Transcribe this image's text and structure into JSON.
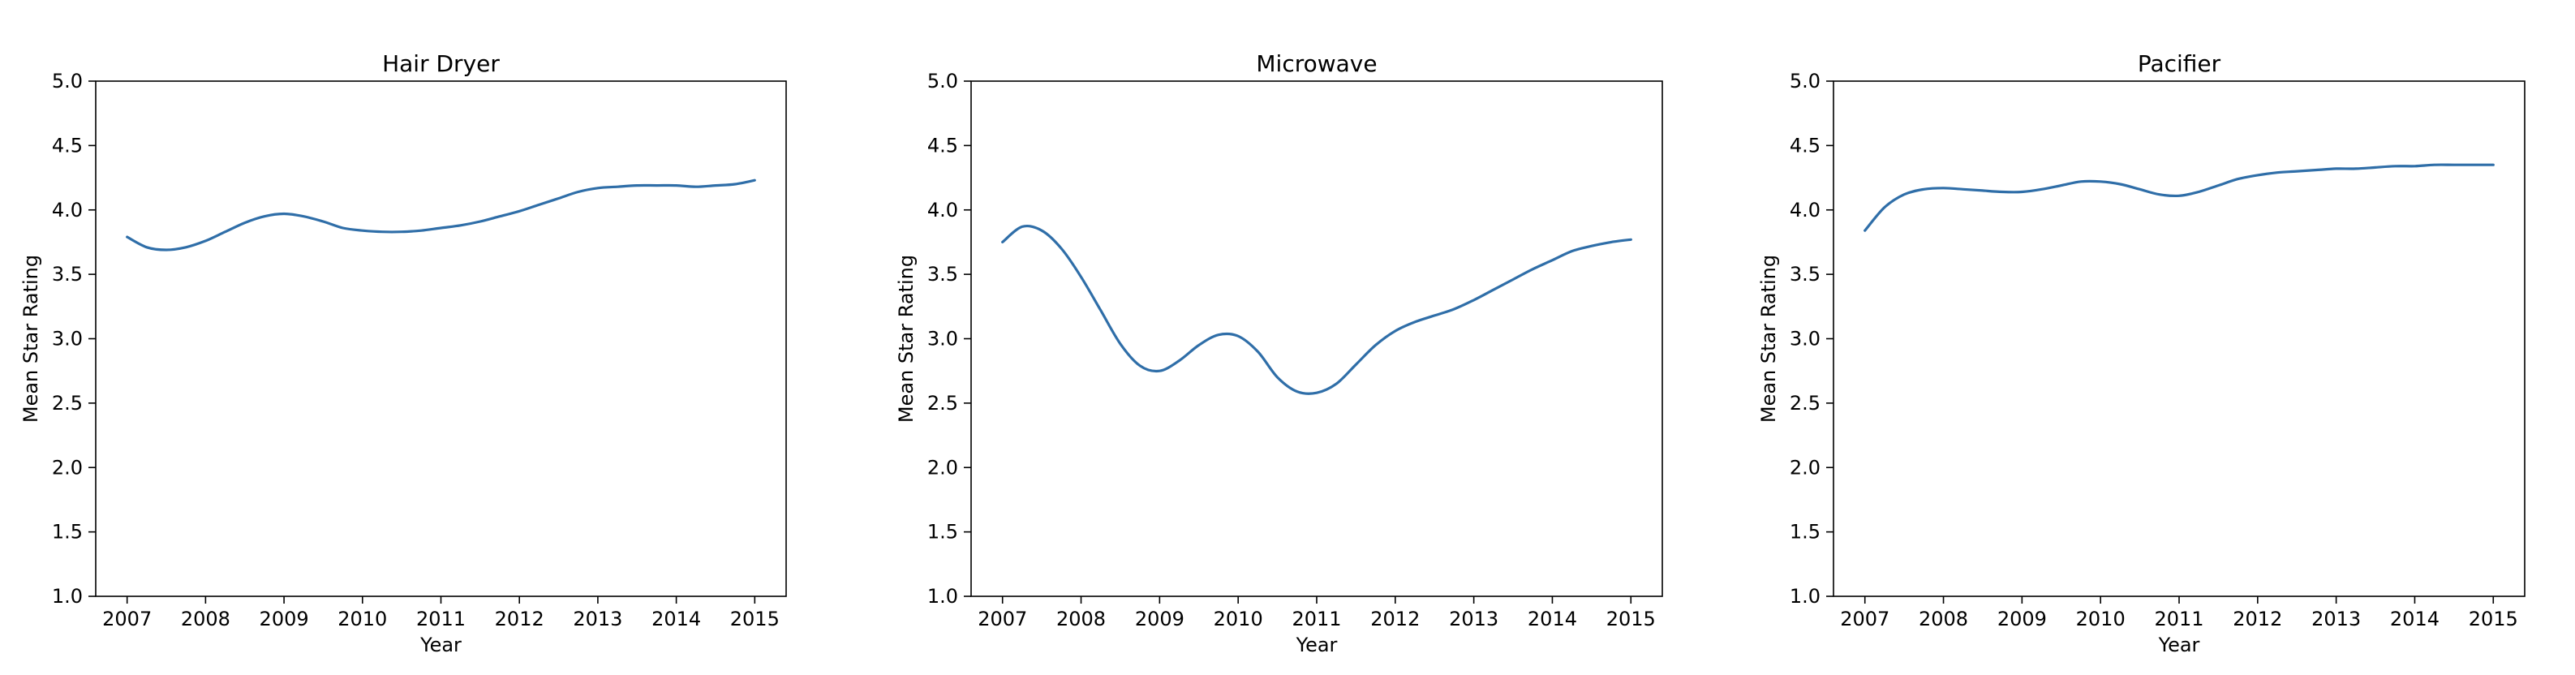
{
  "chart_data": [
    {
      "type": "line",
      "title": "Hair Dryer",
      "xlabel": "Year",
      "ylabel": "Mean Star Rating",
      "xlim": [
        2006.6,
        2015.4
      ],
      "ylim": [
        1.0,
        5.0
      ],
      "xticks": [
        "2007",
        "2008",
        "2009",
        "2010",
        "2011",
        "2012",
        "2013",
        "2014",
        "2015"
      ],
      "yticks": [
        "1.0",
        "1.5",
        "2.0",
        "2.5",
        "3.0",
        "3.5",
        "4.0",
        "4.5",
        "5.0"
      ],
      "grid": false,
      "line_color": "#2f6ea8",
      "x": [
        2007,
        2007.25,
        2007.5,
        2007.75,
        2008,
        2008.25,
        2008.5,
        2008.75,
        2009,
        2009.25,
        2009.5,
        2009.75,
        2010,
        2010.25,
        2010.5,
        2010.75,
        2011,
        2011.25,
        2011.5,
        2011.75,
        2012,
        2012.25,
        2012.5,
        2012.75,
        2013,
        2013.25,
        2013.5,
        2013.75,
        2014,
        2014.25,
        2014.5,
        2014.75,
        2015
      ],
      "values": [
        3.79,
        3.71,
        3.69,
        3.71,
        3.76,
        3.83,
        3.9,
        3.95,
        3.97,
        3.95,
        3.91,
        3.86,
        3.84,
        3.83,
        3.83,
        3.84,
        3.86,
        3.88,
        3.91,
        3.95,
        3.99,
        4.04,
        4.09,
        4.14,
        4.17,
        4.18,
        4.19,
        4.19,
        4.19,
        4.18,
        4.19,
        4.2,
        4.23
      ]
    },
    {
      "type": "line",
      "title": "Microwave",
      "xlabel": "Year",
      "ylabel": "Mean Star Rating",
      "xlim": [
        2006.6,
        2015.4
      ],
      "ylim": [
        1.0,
        5.0
      ],
      "xticks": [
        "2007",
        "2008",
        "2009",
        "2010",
        "2011",
        "2012",
        "2013",
        "2014",
        "2015"
      ],
      "yticks": [
        "1.0",
        "1.5",
        "2.0",
        "2.5",
        "3.0",
        "3.5",
        "4.0",
        "4.5",
        "5.0"
      ],
      "grid": false,
      "line_color": "#2f6ea8",
      "x": [
        2007,
        2007.25,
        2007.5,
        2007.75,
        2008,
        2008.25,
        2008.5,
        2008.75,
        2009,
        2009.25,
        2009.5,
        2009.75,
        2010,
        2010.25,
        2010.5,
        2010.75,
        2011,
        2011.25,
        2011.5,
        2011.75,
        2012,
        2012.25,
        2012.5,
        2012.75,
        2013,
        2013.25,
        2013.5,
        2013.75,
        2014,
        2014.25,
        2014.5,
        2014.75,
        2015
      ],
      "values": [
        3.75,
        3.87,
        3.84,
        3.7,
        3.48,
        3.22,
        2.96,
        2.79,
        2.75,
        2.83,
        2.95,
        3.03,
        3.02,
        2.9,
        2.7,
        2.59,
        2.58,
        2.65,
        2.8,
        2.95,
        3.06,
        3.13,
        3.18,
        3.23,
        3.3,
        3.38,
        3.46,
        3.54,
        3.61,
        3.68,
        3.72,
        3.75,
        3.77
      ]
    },
    {
      "type": "line",
      "title": "Pacifier",
      "xlabel": "Year",
      "ylabel": "Mean Star Rating",
      "xlim": [
        2006.6,
        2015.4
      ],
      "ylim": [
        1.0,
        5.0
      ],
      "xticks": [
        "2007",
        "2008",
        "2009",
        "2010",
        "2011",
        "2012",
        "2013",
        "2014",
        "2015"
      ],
      "yticks": [
        "1.0",
        "1.5",
        "2.0",
        "2.5",
        "3.0",
        "3.5",
        "4.0",
        "4.5",
        "5.0"
      ],
      "grid": false,
      "line_color": "#2f6ea8",
      "x": [
        2007,
        2007.25,
        2007.5,
        2007.75,
        2008,
        2008.25,
        2008.5,
        2008.75,
        2009,
        2009.25,
        2009.5,
        2009.75,
        2010,
        2010.25,
        2010.5,
        2010.75,
        2011,
        2011.25,
        2011.5,
        2011.75,
        2012,
        2012.25,
        2012.5,
        2012.75,
        2013,
        2013.25,
        2013.5,
        2013.75,
        2014,
        2014.25,
        2014.5,
        2014.75,
        2015
      ],
      "values": [
        3.84,
        4.02,
        4.12,
        4.16,
        4.17,
        4.16,
        4.15,
        4.14,
        4.14,
        4.16,
        4.19,
        4.22,
        4.22,
        4.2,
        4.16,
        4.12,
        4.11,
        4.14,
        4.19,
        4.24,
        4.27,
        4.29,
        4.3,
        4.31,
        4.32,
        4.32,
        4.33,
        4.34,
        4.34,
        4.35,
        4.35,
        4.35,
        4.35
      ]
    }
  ]
}
